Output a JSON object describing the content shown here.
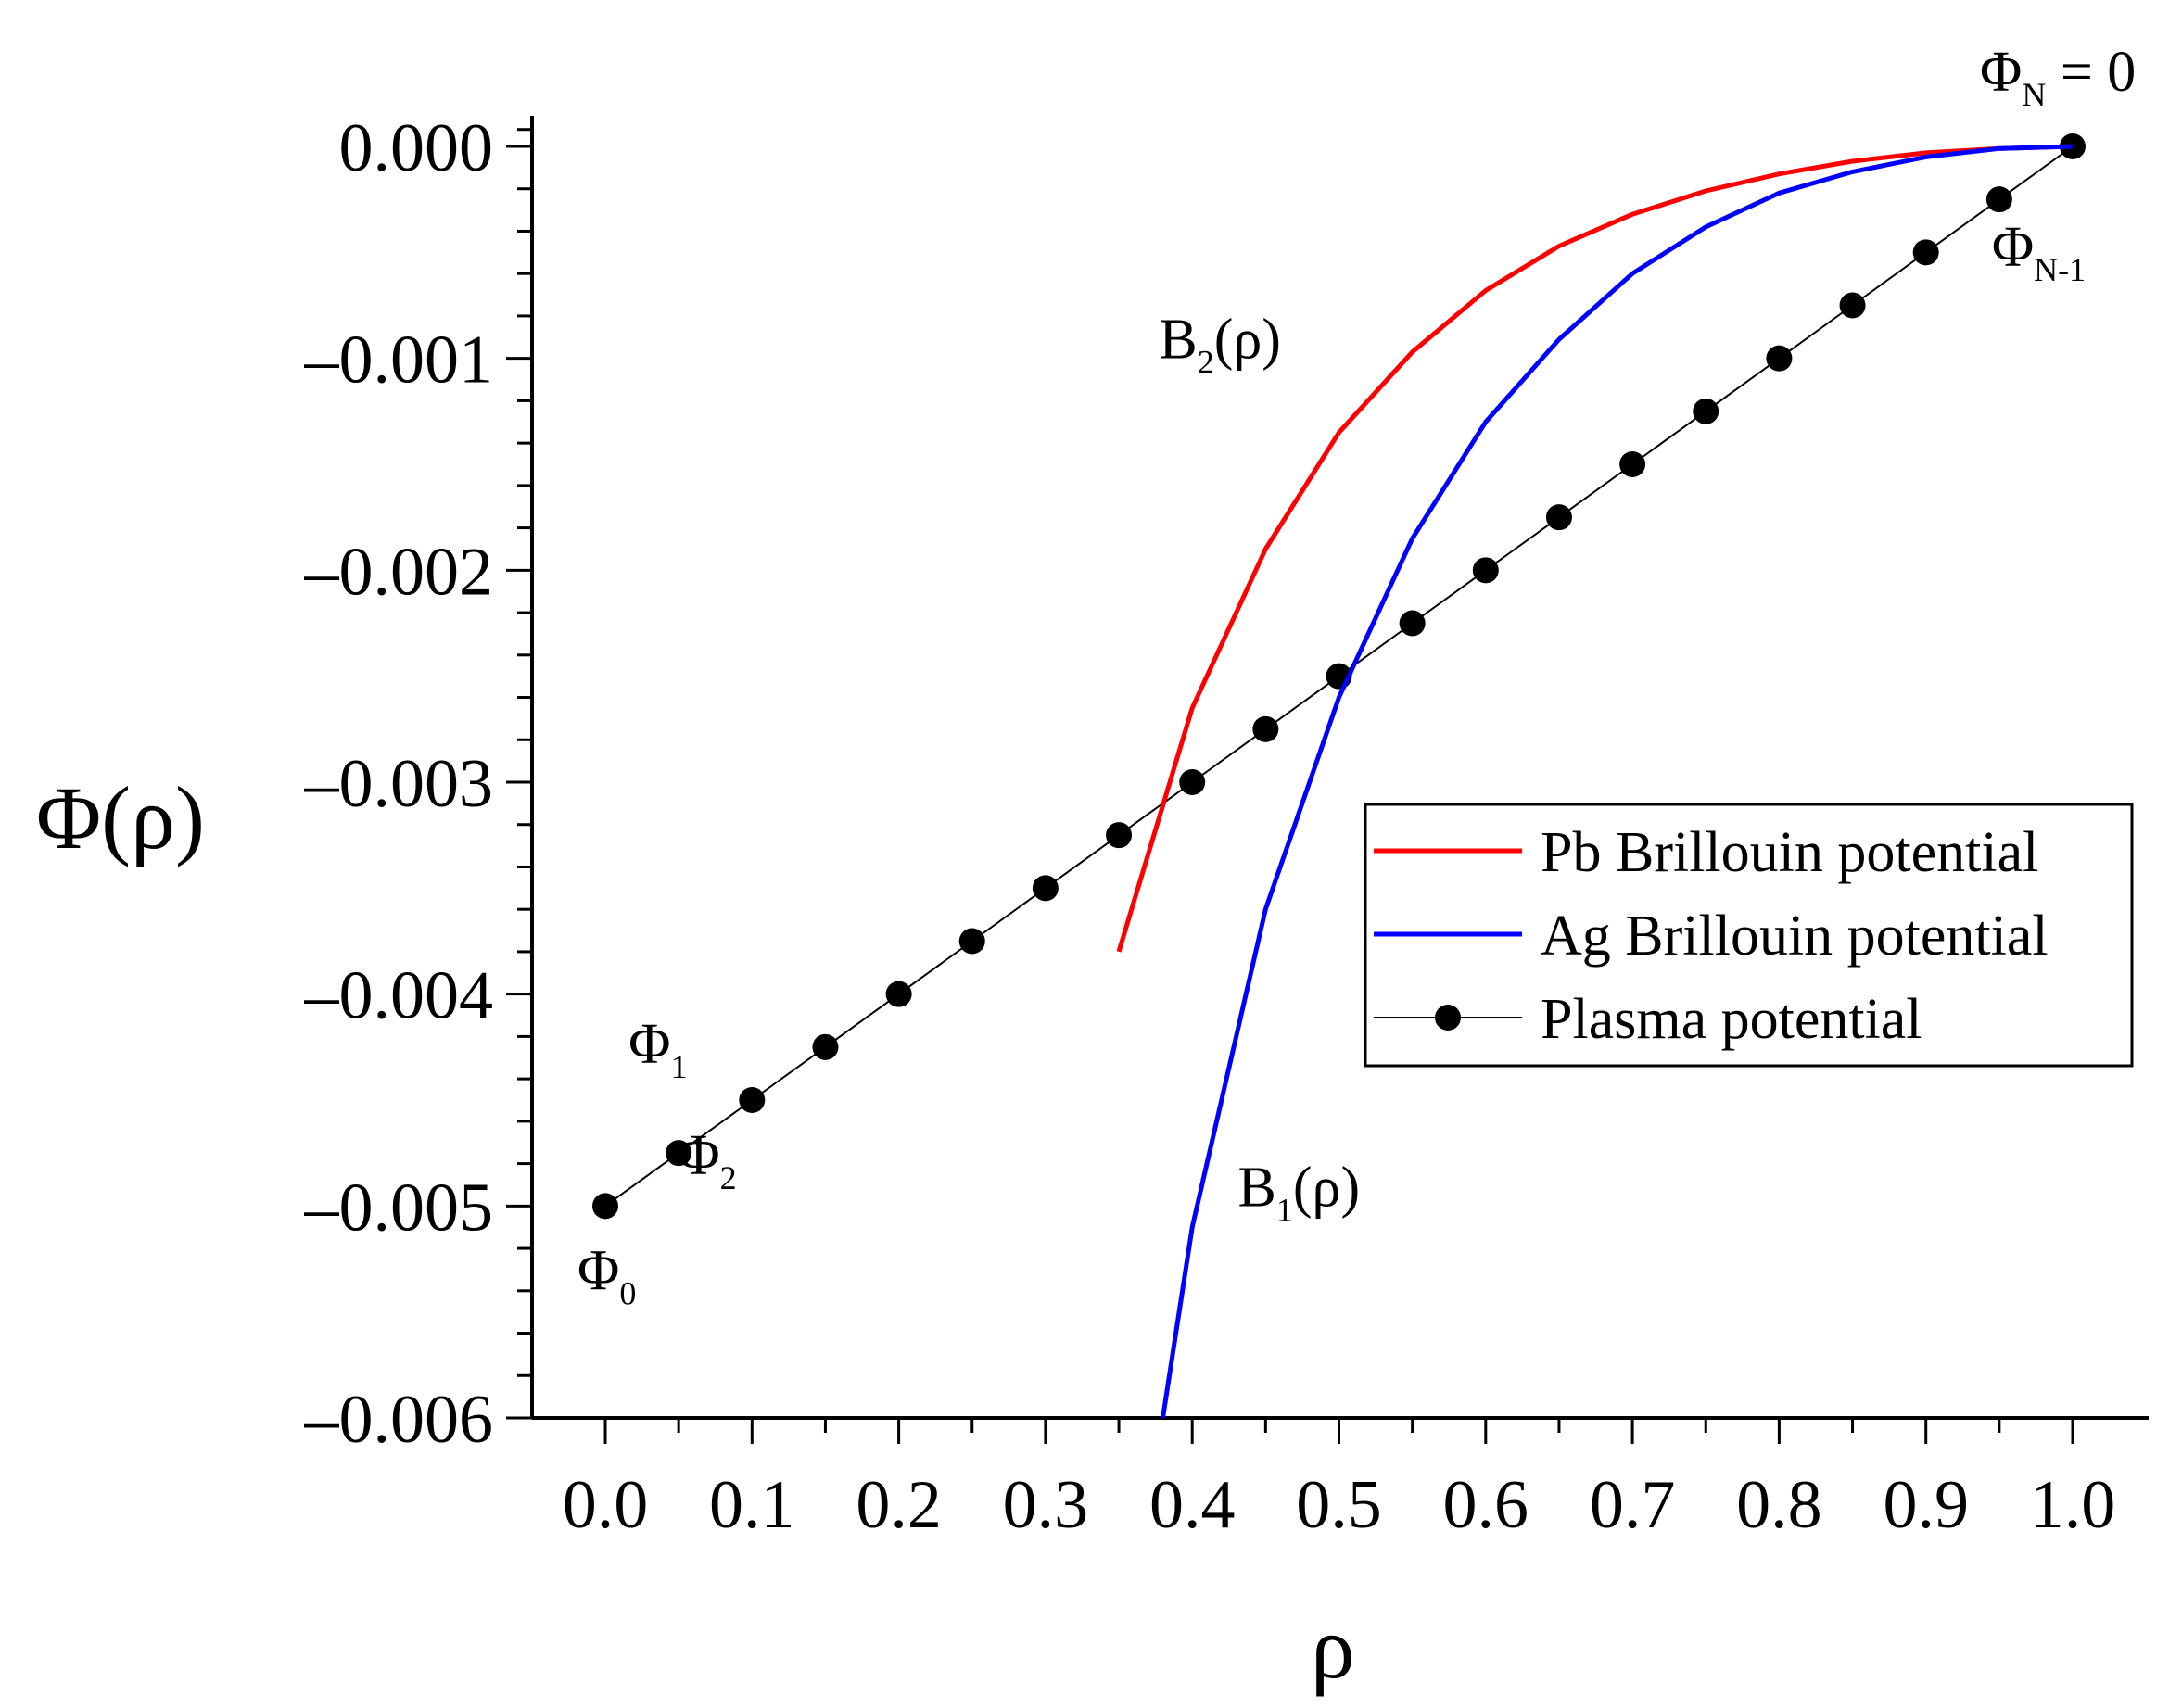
{
  "chart_data": {
    "type": "line",
    "title": "",
    "xlabel": "ρ",
    "ylabel": "Φ(ρ)",
    "xlim": [
      -0.05,
      1.05
    ],
    "ylim": [
      -0.006,
      0.0001
    ],
    "x_ticks": [
      0.0,
      0.1,
      0.2,
      0.3,
      0.4,
      0.5,
      0.6,
      0.7,
      0.8,
      0.9,
      1.0
    ],
    "x_tick_labels": [
      "0.0",
      "0.1",
      "0.2",
      "0.3",
      "0.4",
      "0.5",
      "0.6",
      "0.7",
      "0.8",
      "0.9",
      "1.0"
    ],
    "y_ticks": [
      0.0,
      -0.001,
      -0.002,
      -0.003,
      -0.004,
      -0.005,
      -0.006
    ],
    "y_tick_labels": [
      "0.000",
      "–0.001",
      "–0.002",
      "–0.003",
      "–0.004",
      "–0.005",
      "–0.006"
    ],
    "grid": false,
    "legend_position": "center-right",
    "series": [
      {
        "name": "Pb Brillouin potential",
        "color": "#ff0000",
        "marker": "none",
        "x": [
          0.35,
          0.4,
          0.45,
          0.5,
          0.55,
          0.6,
          0.65,
          0.7,
          0.75,
          0.8,
          0.85,
          0.9,
          0.95,
          1.0
        ],
        "y": [
          -0.0038,
          -0.00265,
          -0.0019,
          -0.00135,
          -0.00097,
          -0.00068,
          -0.00047,
          -0.00032,
          -0.00021,
          -0.00013,
          -7e-05,
          -3e-05,
          -1e-05,
          0.0
        ]
      },
      {
        "name": "Ag Brillouin potential",
        "color": "#0000ff",
        "marker": "none",
        "x": [
          0.38,
          0.4,
          0.45,
          0.5,
          0.55,
          0.6,
          0.65,
          0.7,
          0.75,
          0.8,
          0.85,
          0.9,
          0.95,
          1.0
        ],
        "y": [
          -0.006,
          -0.0051,
          -0.0036,
          -0.0026,
          -0.00185,
          -0.0013,
          -0.00091,
          -0.0006,
          -0.00038,
          -0.00022,
          -0.00012,
          -5e-05,
          -1e-05,
          0.0
        ]
      },
      {
        "name": "Plasma potential",
        "color": "#000000",
        "marker": "circle",
        "x": [
          0.0,
          0.05,
          0.1,
          0.15,
          0.2,
          0.25,
          0.3,
          0.35,
          0.4,
          0.45,
          0.5,
          0.55,
          0.6,
          0.65,
          0.7,
          0.75,
          0.8,
          0.85,
          0.9,
          0.95,
          1.0
        ],
        "y": [
          -0.005,
          -0.00475,
          -0.0045,
          -0.00425,
          -0.004,
          -0.00375,
          -0.0035,
          -0.00325,
          -0.003,
          -0.00275,
          -0.0025,
          -0.00225,
          -0.002,
          -0.00175,
          -0.0015,
          -0.00125,
          -0.001,
          -0.00075,
          -0.0005,
          -0.00025,
          0.0
        ]
      }
    ],
    "annotations": [
      {
        "name": "phi-n-annotation",
        "base": "Φ",
        "sub": "N",
        "suffix": " = 0",
        "x": 1.0,
        "y": 0.0
      },
      {
        "name": "phi-n-minus-1-annotation",
        "base": "Φ",
        "sub": "N-1",
        "suffix": "",
        "x": 0.95,
        "y": -0.00025
      },
      {
        "name": "b2-annotation",
        "base": "B",
        "sub": "2",
        "suffix": "(ρ)",
        "x": 0.45,
        "y": -0.001
      },
      {
        "name": "b1-annotation",
        "base": "B",
        "sub": "1",
        "suffix": "(ρ)",
        "x": 0.5,
        "y": -0.005
      },
      {
        "name": "phi-1-annotation",
        "base": "Φ",
        "sub": "1",
        "suffix": "",
        "x": 0.05,
        "y": -0.00475
      },
      {
        "name": "phi-2-annotation",
        "base": "Φ",
        "sub": "2",
        "suffix": "",
        "x": 0.1,
        "y": -0.0045
      },
      {
        "name": "phi-0-annotation",
        "base": "Φ",
        "sub": "0",
        "suffix": "",
        "x": 0.0,
        "y": -0.005
      }
    ]
  }
}
